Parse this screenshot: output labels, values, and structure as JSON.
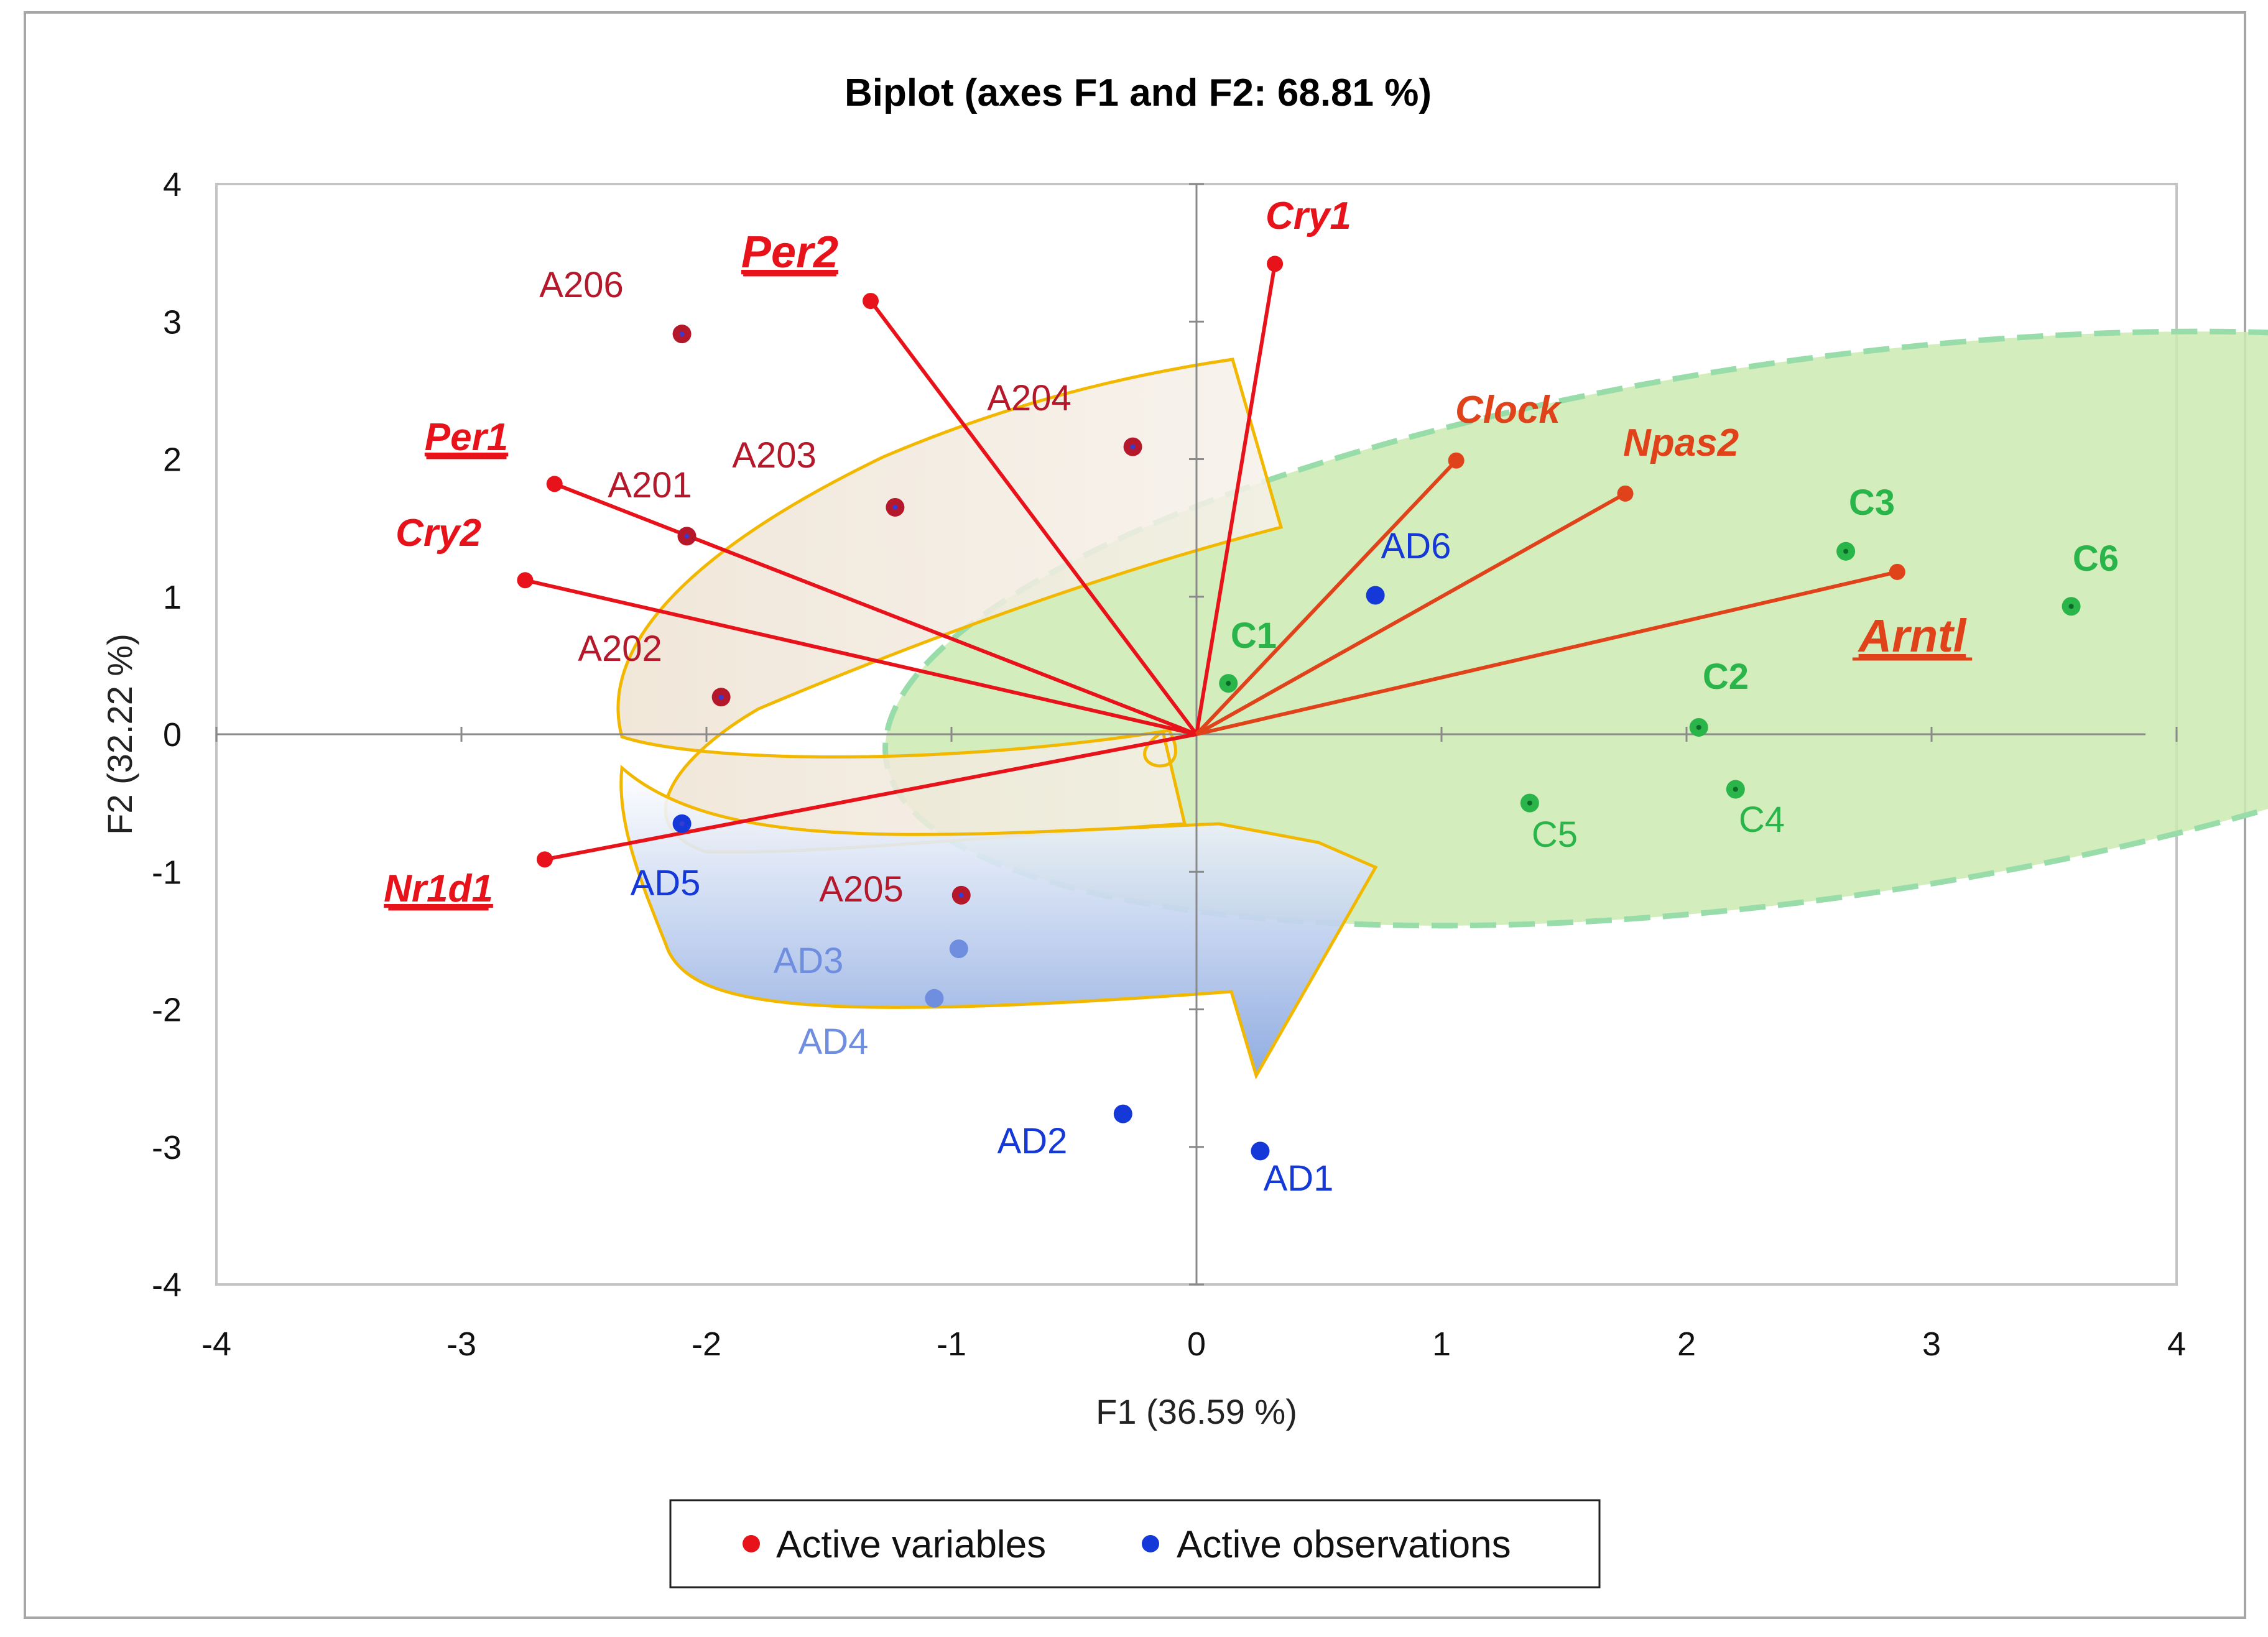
{
  "chart_data": {
    "type": "scatter",
    "subtype": "pca-biplot",
    "title": "Biplot (axes F1 and F2: 68.81 %)",
    "xlabel": "F1 (36.59 %)",
    "ylabel": "F2 (32.22 %)",
    "xlim": [
      -4,
      4
    ],
    "ylim": [
      -4,
      4
    ],
    "x_ticks": [
      -4,
      -3,
      -2,
      -1,
      0,
      1,
      2,
      3,
      4
    ],
    "y_ticks": [
      -4,
      -3,
      -2,
      -1,
      0,
      1,
      2,
      3,
      4
    ],
    "grid": false,
    "colors": {
      "variable": "#e8121b",
      "variable_cluster_c": "#e0421a",
      "observation_a": "#b5182a",
      "observation_ad": "#1538d8",
      "observation_ad_light": "#6f8ee0",
      "observation_c": "#2ab54a",
      "arrow_outline": "#f2b800",
      "green_ellipse_fill": "#cdeab0",
      "green_ellipse_stroke": "#98dcaa",
      "blue_arrow_fill": "#9cb6e6",
      "beige_fill": "#efe6da"
    },
    "variables": [
      {
        "name": "Cry1",
        "x": 0.32,
        "y": 3.42,
        "underline": false,
        "group": "a"
      },
      {
        "name": "Per2",
        "x": -1.33,
        "y": 3.15,
        "underline": true,
        "group": "a"
      },
      {
        "name": "Per1",
        "x": -2.62,
        "y": 1.82,
        "underline": true,
        "group": "a"
      },
      {
        "name": "Cry2",
        "x": -2.74,
        "y": 1.12,
        "underline": false,
        "group": "a"
      },
      {
        "name": "Nr1d1",
        "x": -2.66,
        "y": -0.91,
        "underline": true,
        "group": "a"
      },
      {
        "name": "Clock",
        "x": 1.06,
        "y": 1.99,
        "underline": false,
        "group": "c"
      },
      {
        "name": "Npas2",
        "x": 1.75,
        "y": 1.75,
        "underline": false,
        "group": "c"
      },
      {
        "name": "Arntl",
        "x": 2.86,
        "y": 1.18,
        "underline": true,
        "group": "c"
      }
    ],
    "observations": [
      {
        "name": "A201",
        "x": -2.08,
        "y": 1.44,
        "group": "A"
      },
      {
        "name": "A202",
        "x": -1.94,
        "y": 0.27,
        "group": "A"
      },
      {
        "name": "A203",
        "x": -1.23,
        "y": 1.65,
        "group": "A"
      },
      {
        "name": "A204",
        "x": -0.26,
        "y": 2.09,
        "group": "A"
      },
      {
        "name": "A205",
        "x": -0.96,
        "y": -1.17,
        "group": "A"
      },
      {
        "name": "A206",
        "x": -2.1,
        "y": 2.91,
        "group": "A"
      },
      {
        "name": "AD1",
        "x": 0.26,
        "y": -3.03,
        "group": "AD"
      },
      {
        "name": "AD2",
        "x": -0.3,
        "y": -2.76,
        "group": "AD"
      },
      {
        "name": "AD3",
        "x": -0.97,
        "y": -1.56,
        "group": "AD"
      },
      {
        "name": "AD4",
        "x": -1.07,
        "y": -1.92,
        "group": "AD"
      },
      {
        "name": "AD5",
        "x": -2.1,
        "y": -0.65,
        "group": "AD"
      },
      {
        "name": "AD6",
        "x": 0.73,
        "y": 1.01,
        "group": "AD"
      },
      {
        "name": "C1",
        "x": 0.13,
        "y": 0.37,
        "group": "C"
      },
      {
        "name": "C2",
        "x": 2.05,
        "y": 0.05,
        "group": "C"
      },
      {
        "name": "C3",
        "x": 2.65,
        "y": 1.33,
        "group": "C"
      },
      {
        "name": "C4",
        "x": 2.2,
        "y": -0.4,
        "group": "C"
      },
      {
        "name": "C5",
        "x": 1.36,
        "y": -0.5,
        "group": "C"
      },
      {
        "name": "C6",
        "x": 3.57,
        "y": 0.93,
        "group": "C"
      }
    ],
    "legend": {
      "position": "bottom-center",
      "entries": [
        {
          "label": "Active variables",
          "color": "#e8121b"
        },
        {
          "label": "Active observations",
          "color": "#1538d8"
        }
      ]
    }
  }
}
